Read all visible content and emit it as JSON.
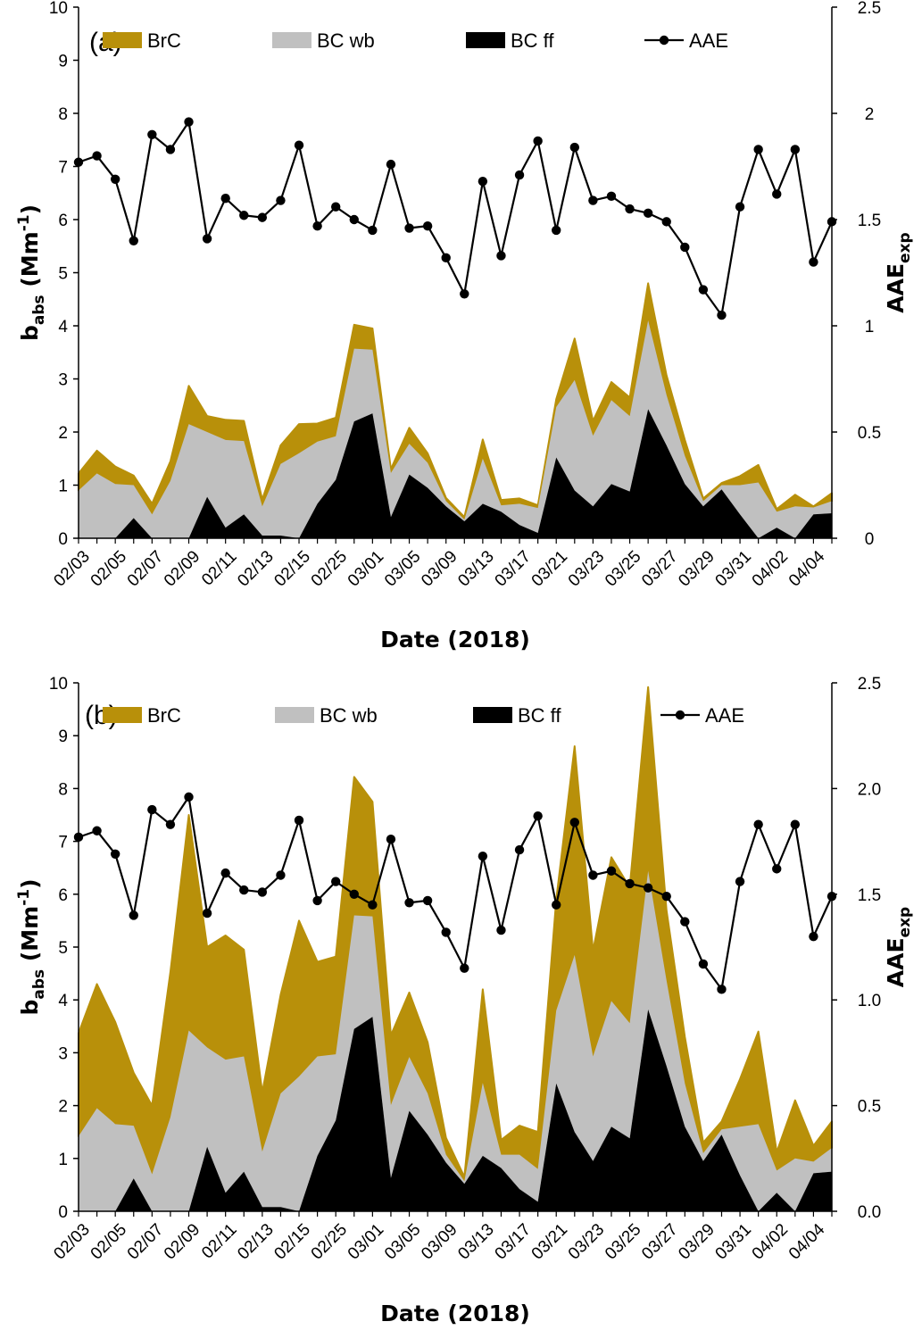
{
  "colors": {
    "brc": "#b8900a",
    "bc_wb": "#c0c0c0",
    "bc_ff": "#000000",
    "aae": "#000000"
  },
  "chart_data": [
    {
      "type": "area",
      "panel": "(a)",
      "stacked": true,
      "x": [
        "02/03",
        "02/04",
        "02/05",
        "02/06",
        "02/07",
        "02/08",
        "02/09",
        "02/10",
        "02/11",
        "02/12",
        "02/13",
        "02/14",
        "02/15",
        "02/25",
        "02/26",
        "02/28",
        "03/01",
        "03/03",
        "03/05",
        "03/07",
        "03/09",
        "03/11",
        "03/13",
        "03/15",
        "03/17",
        "03/19",
        "03/21",
        "03/22",
        "03/23",
        "03/24",
        "03/25",
        "03/26",
        "03/27",
        "03/28",
        "03/29",
        "03/30",
        "03/31",
        "04/01",
        "04/02",
        "04/03",
        "04/04",
        "04/05"
      ],
      "x_tick_labels": [
        "02/03",
        "02/05",
        "02/07",
        "02/09",
        "02/11",
        "02/13",
        "02/15",
        "02/25",
        "03/01",
        "03/05",
        "03/09",
        "03/13",
        "03/17",
        "03/21",
        "03/23",
        "03/25",
        "03/27",
        "03/29",
        "03/31",
        "04/02",
        "04/04"
      ],
      "xlabel": "Date (2018)",
      "ylabel": {
        "main": "b",
        "sub": "abs",
        "unit": " (Mm",
        "sup": "-1",
        "close": ")"
      },
      "y2label": {
        "main": "AAE",
        "sub": "exp"
      },
      "ylim": [
        0,
        10
      ],
      "y_ticks": [
        "0",
        "1",
        "2",
        "3",
        "4",
        "5",
        "6",
        "7",
        "8",
        "9",
        "10"
      ],
      "y2lim": [
        0,
        2.5
      ],
      "y2_ticks": [
        "0",
        "0.5",
        "1",
        "1.5",
        "2",
        "2.5"
      ],
      "legend": [
        "BrC",
        "BC wb",
        "BC ff",
        "AAE"
      ],
      "series": [
        {
          "name": "BC ff",
          "kind": "area",
          "values": [
            0,
            0,
            0,
            0.38,
            0,
            0,
            0,
            0.78,
            0.2,
            0.45,
            0.05,
            0.05,
            0,
            0.65,
            1.1,
            2.2,
            2.35,
            0.4,
            1.2,
            0.95,
            0.6,
            0.32,
            0.65,
            0.5,
            0.25,
            0.1,
            1.52,
            0.9,
            0.6,
            1.02,
            0.88,
            2.43,
            1.75,
            1.02,
            0.6,
            0.92,
            0.45,
            0,
            0.2,
            0,
            0.45,
            0.47
          ]
        },
        {
          "name": "BC wb",
          "kind": "area",
          "values": [
            0.9,
            1.22,
            1.02,
            0.62,
            0.45,
            1.08,
            2.15,
            1.22,
            1.65,
            1.38,
            0.55,
            1.35,
            1.6,
            1.17,
            0.82,
            1.37,
            1.2,
            0.83,
            0.58,
            0.47,
            0.1,
            0.03,
            0.85,
            0.12,
            0.4,
            0.47,
            0.95,
            2.08,
            1.33,
            1.58,
            1.42,
            1.67,
            0.95,
            0.53,
            0.1,
            0.08,
            0.55,
            1.05,
            0.3,
            0.6,
            0.13,
            0.23
          ]
        },
        {
          "name": "BrC",
          "kind": "area",
          "values": [
            0.32,
            0.43,
            0.33,
            0.18,
            0.2,
            0.37,
            0.72,
            0.3,
            0.38,
            0.38,
            0.13,
            0.35,
            0.55,
            0.34,
            0.35,
            0.45,
            0.4,
            0.07,
            0.3,
            0.18,
            0.06,
            0.05,
            0.36,
            0.1,
            0.1,
            0.05,
            0.15,
            0.78,
            0.28,
            0.34,
            0.35,
            0.7,
            0.37,
            0.3,
            0.05,
            0.04,
            0.17,
            0.33,
            0.05,
            0.22,
            0.02,
            0.15
          ]
        },
        {
          "name": "AAE",
          "kind": "line",
          "axis": "right",
          "values": [
            1.77,
            1.8,
            1.69,
            1.4,
            1.9,
            1.83,
            1.96,
            1.41,
            1.6,
            1.52,
            1.51,
            1.59,
            1.85,
            1.47,
            1.56,
            1.5,
            1.45,
            1.76,
            1.46,
            1.47,
            1.32,
            1.15,
            1.68,
            1.33,
            1.71,
            1.87,
            1.45,
            1.84,
            1.59,
            1.61,
            1.55,
            1.53,
            1.49,
            1.37,
            1.17,
            1.05,
            1.56,
            1.83,
            1.62,
            1.83,
            1.3,
            1.49
          ]
        }
      ]
    },
    {
      "type": "area",
      "panel": "(b)",
      "stacked": true,
      "x": [
        "02/03",
        "02/04",
        "02/05",
        "02/06",
        "02/07",
        "02/08",
        "02/09",
        "02/10",
        "02/11",
        "02/12",
        "02/13",
        "02/14",
        "02/15",
        "02/25",
        "02/26",
        "02/28",
        "03/01",
        "03/03",
        "03/05",
        "03/07",
        "03/09",
        "03/11",
        "03/13",
        "03/15",
        "03/17",
        "03/19",
        "03/21",
        "03/22",
        "03/23",
        "03/24",
        "03/25",
        "03/26",
        "03/27",
        "03/28",
        "03/29",
        "03/30",
        "03/31",
        "04/01",
        "04/02",
        "04/03",
        "04/04",
        "04/05"
      ],
      "x_tick_labels": [
        "02/03",
        "02/05",
        "02/07",
        "02/09",
        "02/11",
        "02/13",
        "02/15",
        "02/25",
        "03/01",
        "03/05",
        "03/09",
        "03/13",
        "03/17",
        "03/21",
        "03/23",
        "03/25",
        "03/27",
        "03/29",
        "03/31",
        "04/02",
        "04/04"
      ],
      "xlabel": "Date (2018)",
      "ylabel": {
        "main": "b",
        "sub": "abs",
        "unit": " (Mm",
        "sup": "-1",
        "close": ")"
      },
      "y2label": {
        "main": "AAE",
        "sub": "exp"
      },
      "ylim": [
        0,
        10
      ],
      "y_ticks": [
        "0",
        "1",
        "2",
        "3",
        "4",
        "5",
        "6",
        "7",
        "8",
        "9",
        "10"
      ],
      "y2lim": [
        0,
        2.5
      ],
      "y2_ticks": [
        "0.0",
        "0.5",
        "1.0",
        "1.5",
        "2.0",
        "2.5"
      ],
      "legend": [
        "BrC",
        "BC wb",
        "BC ff",
        "AAE"
      ],
      "series": [
        {
          "name": "BC ff",
          "kind": "area",
          "values": [
            0,
            0,
            0,
            0.62,
            0,
            0,
            0,
            1.22,
            0.35,
            0.75,
            0.08,
            0.08,
            0,
            1.05,
            1.72,
            3.45,
            3.68,
            0.63,
            1.9,
            1.45,
            0.92,
            0.52,
            1.05,
            0.82,
            0.42,
            0.18,
            2.42,
            1.5,
            0.95,
            1.6,
            1.38,
            3.82,
            2.75,
            1.6,
            0.95,
            1.45,
            0.68,
            0,
            0.35,
            0,
            0.72,
            0.75
          ]
        },
        {
          "name": "BC wb",
          "kind": "area",
          "values": [
            1.42,
            1.95,
            1.65,
            1.0,
            0.7,
            1.78,
            3.42,
            1.88,
            2.52,
            2.18,
            1.05,
            2.15,
            2.55,
            1.88,
            1.25,
            2.15,
            1.9,
            1.38,
            1.02,
            0.78,
            0.15,
            0.05,
            1.38,
            0.25,
            0.65,
            0.62,
            1.38,
            3.35,
            1.98,
            2.38,
            2.18,
            2.62,
            1.62,
            0.82,
            0.15,
            0.1,
            0.92,
            1.65,
            0.42,
            1.0,
            0.22,
            0.45
          ]
        },
        {
          "name": "BrC",
          "kind": "area",
          "values": [
            1.95,
            2.35,
            1.93,
            1.0,
            1.3,
            2.75,
            4.08,
            1.9,
            2.35,
            2.02,
            1.12,
            1.87,
            2.95,
            1.79,
            1.85,
            2.62,
            2.17,
            1.32,
            1.22,
            0.97,
            0.32,
            0.08,
            1.77,
            0.28,
            0.55,
            0.7,
            2.1,
            3.95,
            2.0,
            2.72,
            2.57,
            3.48,
            1.33,
            0.88,
            0.2,
            0.15,
            0.9,
            1.75,
            0.35,
            1.1,
            0.3,
            0.5
          ]
        },
        {
          "name": "AAE",
          "kind": "line",
          "axis": "right",
          "values": [
            1.77,
            1.8,
            1.69,
            1.4,
            1.9,
            1.83,
            1.96,
            1.41,
            1.6,
            1.52,
            1.51,
            1.59,
            1.85,
            1.47,
            1.56,
            1.5,
            1.45,
            1.76,
            1.46,
            1.47,
            1.32,
            1.15,
            1.68,
            1.33,
            1.71,
            1.87,
            1.45,
            1.84,
            1.59,
            1.61,
            1.55,
            1.53,
            1.49,
            1.37,
            1.17,
            1.05,
            1.56,
            1.83,
            1.62,
            1.83,
            1.3,
            1.49
          ]
        }
      ]
    }
  ]
}
